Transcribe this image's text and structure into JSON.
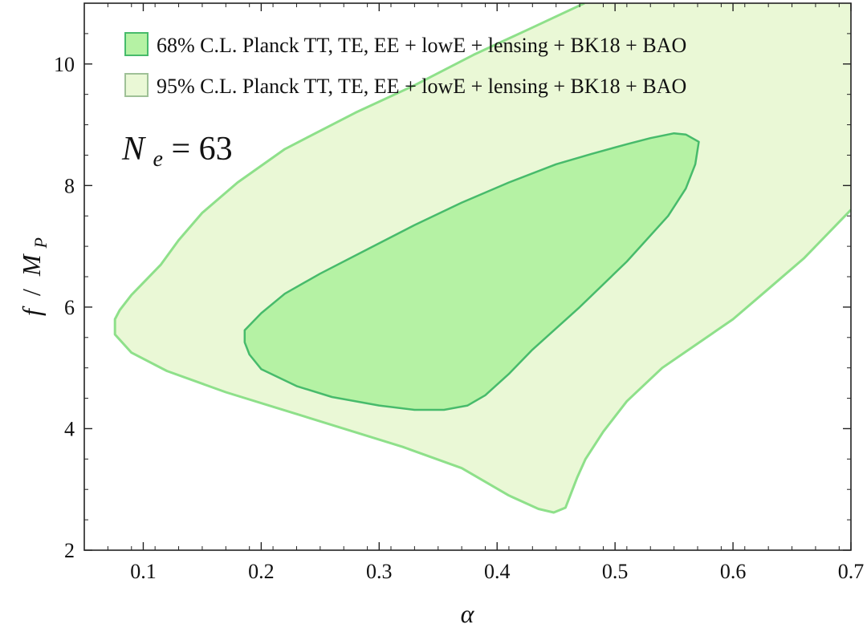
{
  "chart_data": {
    "type": "contour",
    "xlabel": "α",
    "ylabel_main": "f",
    "ylabel_sep": "/",
    "ylabel_M": "M",
    "ylabel_sub": "P",
    "xlim": [
      0.05,
      0.7
    ],
    "ylim": [
      2,
      11
    ],
    "xticks": [
      0.1,
      0.2,
      0.3,
      0.4,
      0.5,
      0.6,
      0.7
    ],
    "xtick_labels": [
      "0.1",
      "0.2",
      "0.3",
      "0.4",
      "0.5",
      "0.6",
      "0.7"
    ],
    "yticks": [
      2,
      4,
      6,
      8,
      10
    ],
    "ytick_labels": [
      "2",
      "4",
      "6",
      "8",
      "10"
    ],
    "annotation": {
      "main": "N",
      "sub": "e",
      "rest": " = 63"
    },
    "legend_position": "top-left",
    "series": [
      {
        "name": "95% C.L. Planck TT, TE, EE + lowE + lensing + BK18 + BAO",
        "fill": "#eaf8d6",
        "stroke": "#8ee08a",
        "outer": [
          [
            0.474,
            11.0
          ],
          [
            0.43,
            10.6
          ],
          [
            0.38,
            10.15
          ],
          [
            0.33,
            9.65
          ],
          [
            0.28,
            9.2
          ],
          [
            0.22,
            8.6
          ],
          [
            0.18,
            8.05
          ],
          [
            0.15,
            7.55
          ],
          [
            0.13,
            7.1
          ],
          [
            0.115,
            6.7
          ],
          [
            0.1,
            6.4
          ],
          [
            0.09,
            6.2
          ],
          [
            0.08,
            5.95
          ],
          [
            0.076,
            5.8
          ],
          [
            0.076,
            5.55
          ],
          [
            0.09,
            5.25
          ],
          [
            0.12,
            4.95
          ],
          [
            0.17,
            4.6
          ],
          [
            0.22,
            4.3
          ],
          [
            0.27,
            4.0
          ],
          [
            0.32,
            3.7
          ],
          [
            0.37,
            3.35
          ],
          [
            0.41,
            2.9
          ],
          [
            0.435,
            2.68
          ],
          [
            0.448,
            2.62
          ],
          [
            0.458,
            2.7
          ],
          [
            0.462,
            2.9
          ],
          [
            0.468,
            3.2
          ],
          [
            0.475,
            3.5
          ],
          [
            0.49,
            3.95
          ],
          [
            0.51,
            4.45
          ],
          [
            0.54,
            5.0
          ],
          [
            0.57,
            5.4
          ],
          [
            0.6,
            5.8
          ],
          [
            0.63,
            6.3
          ],
          [
            0.66,
            6.8
          ],
          [
            0.7,
            7.6
          ]
        ]
      },
      {
        "name": "68% C.L. Planck TT, TE, EE + lowE + lensing + BK18 + BAO",
        "fill": "#b5f2a4",
        "stroke": "#47bb6b",
        "outer": [
          [
            0.186,
            5.62
          ],
          [
            0.2,
            5.9
          ],
          [
            0.22,
            6.22
          ],
          [
            0.25,
            6.55
          ],
          [
            0.29,
            6.95
          ],
          [
            0.33,
            7.35
          ],
          [
            0.37,
            7.72
          ],
          [
            0.41,
            8.05
          ],
          [
            0.45,
            8.35
          ],
          [
            0.48,
            8.52
          ],
          [
            0.51,
            8.68
          ],
          [
            0.53,
            8.78
          ],
          [
            0.55,
            8.86
          ],
          [
            0.56,
            8.84
          ],
          [
            0.571,
            8.72
          ],
          [
            0.568,
            8.35
          ],
          [
            0.56,
            7.95
          ],
          [
            0.545,
            7.5
          ],
          [
            0.51,
            6.75
          ],
          [
            0.47,
            6.0
          ],
          [
            0.43,
            5.3
          ],
          [
            0.41,
            4.9
          ],
          [
            0.39,
            4.55
          ],
          [
            0.375,
            4.38
          ],
          [
            0.355,
            4.31
          ],
          [
            0.33,
            4.31
          ],
          [
            0.3,
            4.38
          ],
          [
            0.26,
            4.52
          ],
          [
            0.23,
            4.7
          ],
          [
            0.2,
            4.98
          ],
          [
            0.19,
            5.22
          ],
          [
            0.186,
            5.42
          ],
          [
            0.186,
            5.62
          ]
        ]
      }
    ]
  }
}
